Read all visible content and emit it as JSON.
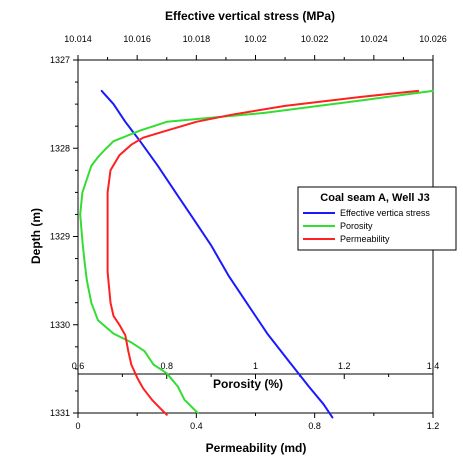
{
  "chart_data": {
    "type": "line",
    "top_axis": {
      "label": "Effective vertical stress (MPa)",
      "range": [
        10.014,
        10.026
      ],
      "ticks": [
        "10.014",
        "10.016",
        "10.018",
        "10.02",
        "10.022",
        "10.024",
        "10.026"
      ]
    },
    "y_axis": {
      "label": "Depth (m)",
      "range": [
        1327,
        1331
      ],
      "inverted": true,
      "ticks": [
        "1327",
        "1328",
        "1329",
        "1330",
        "1331"
      ]
    },
    "porosity_axis": {
      "label": "Porosity (%)",
      "range": [
        0.6,
        1.4
      ],
      "ticks": [
        "0.6",
        "0.8",
        "1",
        "1.2",
        "1.4"
      ]
    },
    "permeability_axis": {
      "label": "Permeability (md)",
      "range": [
        0,
        1.2
      ],
      "ticks": [
        "0",
        "0.4",
        "0.8",
        "1.2"
      ]
    },
    "legend": {
      "title": "Coal seam A, Well J3",
      "entries": [
        "Effective vertica stress",
        "Porosity",
        "Permeability"
      ]
    },
    "series": [
      {
        "name": "Effective vertica stress",
        "axis": "top",
        "color": "#1a1aff",
        "points": [
          [
            10.0148,
            1327.35
          ],
          [
            10.0152,
            1327.5
          ],
          [
            10.0156,
            1327.7
          ],
          [
            10.0161,
            1327.92
          ],
          [
            10.0167,
            1328.2
          ],
          [
            10.0173,
            1328.5
          ],
          [
            10.0179,
            1328.8
          ],
          [
            10.0185,
            1329.1
          ],
          [
            10.0191,
            1329.45
          ],
          [
            10.0197,
            1329.75
          ],
          [
            10.0204,
            1330.1
          ],
          [
            10.0211,
            1330.4
          ],
          [
            10.0218,
            1330.7
          ],
          [
            10.0223,
            1330.9
          ],
          [
            10.0226,
            1331.05
          ]
        ]
      },
      {
        "name": "Porosity",
        "axis": "porosity",
        "color": "#33dd33",
        "points": [
          [
            1.4,
            1327.35
          ],
          [
            1.25,
            1327.45
          ],
          [
            1.02,
            1327.6
          ],
          [
            0.8,
            1327.7
          ],
          [
            0.74,
            1327.8
          ],
          [
            0.68,
            1327.92
          ],
          [
            0.66,
            1328.02
          ],
          [
            0.645,
            1328.1
          ],
          [
            0.63,
            1328.2
          ],
          [
            0.62,
            1328.35
          ],
          [
            0.61,
            1328.5
          ],
          [
            0.605,
            1328.75
          ],
          [
            0.61,
            1329.05
          ],
          [
            0.615,
            1329.3
          ],
          [
            0.62,
            1329.5
          ],
          [
            0.63,
            1329.75
          ],
          [
            0.645,
            1329.95
          ],
          [
            0.68,
            1330.1
          ],
          [
            0.72,
            1330.2
          ],
          [
            0.75,
            1330.3
          ],
          [
            0.77,
            1330.45
          ],
          [
            0.8,
            1330.55
          ],
          [
            0.825,
            1330.7
          ],
          [
            0.84,
            1330.85
          ],
          [
            0.87,
            1331.0
          ]
        ]
      },
      {
        "name": "Permeability",
        "axis": "permeability",
        "color": "#ff2020",
        "points": [
          [
            1.15,
            1327.35
          ],
          [
            0.95,
            1327.42
          ],
          [
            0.7,
            1327.52
          ],
          [
            0.52,
            1327.62
          ],
          [
            0.4,
            1327.7
          ],
          [
            0.3,
            1327.8
          ],
          [
            0.22,
            1327.88
          ],
          [
            0.18,
            1327.96
          ],
          [
            0.14,
            1328.08
          ],
          [
            0.11,
            1328.25
          ],
          [
            0.1,
            1328.5
          ],
          [
            0.1,
            1328.8
          ],
          [
            0.1,
            1329.1
          ],
          [
            0.1,
            1329.4
          ],
          [
            0.11,
            1329.75
          ],
          [
            0.12,
            1329.9
          ],
          [
            0.14,
            1330.0
          ],
          [
            0.16,
            1330.12
          ],
          [
            0.17,
            1330.3
          ],
          [
            0.18,
            1330.45
          ],
          [
            0.2,
            1330.6
          ],
          [
            0.22,
            1330.72
          ],
          [
            0.25,
            1330.85
          ],
          [
            0.27,
            1330.92
          ],
          [
            0.3,
            1331.02
          ]
        ]
      }
    ]
  }
}
